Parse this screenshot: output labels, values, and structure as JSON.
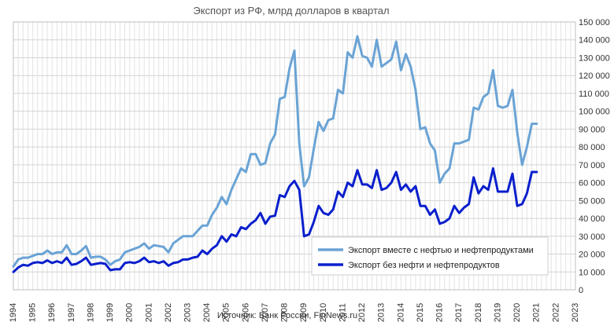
{
  "chart_data": {
    "type": "line",
    "title": "Экспорт из РФ, млрд долларов в квартал",
    "source": "Источник: Банк России, FinNews.ru",
    "xlabel": "",
    "ylabel": "",
    "xlim": [
      1994,
      2023
    ],
    "ylim": [
      0,
      150000
    ],
    "y_ticks": [
      0,
      10000,
      20000,
      30000,
      40000,
      50000,
      60000,
      70000,
      80000,
      90000,
      100000,
      110000,
      120000,
      130000,
      140000,
      150000
    ],
    "y_tick_labels": [
      "0",
      "10 000",
      "20 000",
      "30 000",
      "40 000",
      "50 000",
      "60 000",
      "70 000",
      "80 000",
      "90 000",
      "100 000",
      "110 000",
      "120 000",
      "130 000",
      "140 000",
      "150 000"
    ],
    "x_ticks": [
      "1994",
      "1995",
      "1996",
      "1997",
      "1998",
      "1999",
      "2000",
      "2001",
      "2002",
      "2003",
      "2004",
      "2005",
      "2006",
      "2007",
      "2008",
      "2009",
      "2010",
      "2011",
      "2012",
      "2013",
      "2014",
      "2015",
      "2016",
      "2017",
      "2018",
      "2019",
      "2020",
      "2021",
      "2022",
      "2023"
    ],
    "grid": true,
    "legend_position": "bottom-right",
    "series": [
      {
        "name": "Экспорт вместе с нефтью и нефтепродуктами",
        "color": "#6aa3d5",
        "x": [
          1994.0,
          1994.25,
          1994.5,
          1994.75,
          1995.0,
          1995.25,
          1995.5,
          1995.75,
          1996.0,
          1996.25,
          1996.5,
          1996.75,
          1997.0,
          1997.25,
          1997.5,
          1997.75,
          1998.0,
          1998.25,
          1998.5,
          1998.75,
          1999.0,
          1999.25,
          1999.5,
          1999.75,
          2000.0,
          2000.25,
          2000.5,
          2000.75,
          2001.0,
          2001.25,
          2001.5,
          2001.75,
          2002.0,
          2002.25,
          2002.5,
          2002.75,
          2003.0,
          2003.25,
          2003.5,
          2003.75,
          2004.0,
          2004.25,
          2004.5,
          2004.75,
          2005.0,
          2005.25,
          2005.5,
          2005.75,
          2006.0,
          2006.25,
          2006.5,
          2006.75,
          2007.0,
          2007.25,
          2007.5,
          2007.75,
          2008.0,
          2008.25,
          2008.5,
          2008.75,
          2009.0,
          2009.25,
          2009.5,
          2009.75,
          2010.0,
          2010.25,
          2010.5,
          2010.75,
          2011.0,
          2011.25,
          2011.5,
          2011.75,
          2012.0,
          2012.25,
          2012.5,
          2012.75,
          2013.0,
          2013.25,
          2013.5,
          2013.75,
          2014.0,
          2014.25,
          2014.5,
          2014.75,
          2015.0,
          2015.25,
          2015.5,
          2015.75,
          2016.0,
          2016.25,
          2016.5,
          2016.75,
          2017.0,
          2017.25,
          2017.5,
          2017.75,
          2018.0,
          2018.25,
          2018.5,
          2018.75,
          2019.0,
          2019.25,
          2019.5,
          2019.75,
          2020.0,
          2020.25,
          2020.5,
          2020.75,
          2021.0
        ],
        "values": [
          13000,
          17000,
          18000,
          18000,
          19000,
          20000,
          20000,
          22000,
          20000,
          21000,
          21000,
          25000,
          20000,
          20000,
          22000,
          24500,
          18000,
          18500,
          18500,
          17000,
          14000,
          16000,
          17000,
          21000,
          22000,
          23000,
          24000,
          26000,
          23000,
          25000,
          24500,
          24000,
          21000,
          26000,
          28000,
          30000,
          30000,
          30000,
          33000,
          36000,
          36000,
          42000,
          46000,
          52000,
          48000,
          56000,
          62000,
          68000,
          66000,
          76000,
          76000,
          70000,
          71000,
          82000,
          87000,
          107000,
          108000,
          124000,
          134000,
          82000,
          58000,
          63000,
          79000,
          94000,
          89000,
          95000,
          96000,
          112000,
          110000,
          133000,
          130000,
          142000,
          131000,
          130000,
          125000,
          140000,
          125000,
          127000,
          129000,
          139000,
          123000,
          132000,
          125000,
          112000,
          90000,
          91000,
          82000,
          78000,
          60000,
          65000,
          68000,
          82000,
          82000,
          83000,
          84000,
          102000,
          101000,
          108000,
          110000,
          123000,
          103000,
          102000,
          103000,
          112000,
          88000,
          70000,
          80000,
          93000,
          93000
        ]
      },
      {
        "name": "Экспорт без нефти и нефтепродуктов",
        "color": "#0a1fcc",
        "x": [
          1994.0,
          1994.25,
          1994.5,
          1994.75,
          1995.0,
          1995.25,
          1995.5,
          1995.75,
          1996.0,
          1996.25,
          1996.5,
          1996.75,
          1997.0,
          1997.25,
          1997.5,
          1997.75,
          1998.0,
          1998.25,
          1998.5,
          1998.75,
          1999.0,
          1999.25,
          1999.5,
          1999.75,
          2000.0,
          2000.25,
          2000.5,
          2000.75,
          2001.0,
          2001.25,
          2001.5,
          2001.75,
          2002.0,
          2002.25,
          2002.5,
          2002.75,
          2003.0,
          2003.25,
          2003.5,
          2003.75,
          2004.0,
          2004.25,
          2004.5,
          2004.75,
          2005.0,
          2005.25,
          2005.5,
          2005.75,
          2006.0,
          2006.25,
          2006.5,
          2006.75,
          2007.0,
          2007.25,
          2007.5,
          2007.75,
          2008.0,
          2008.25,
          2008.5,
          2008.75,
          2009.0,
          2009.25,
          2009.5,
          2009.75,
          2010.0,
          2010.25,
          2010.5,
          2010.75,
          2011.0,
          2011.25,
          2011.5,
          2011.75,
          2012.0,
          2012.25,
          2012.5,
          2012.75,
          2013.0,
          2013.25,
          2013.5,
          2013.75,
          2014.0,
          2014.25,
          2014.5,
          2014.75,
          2015.0,
          2015.25,
          2015.5,
          2015.75,
          2016.0,
          2016.25,
          2016.5,
          2016.75,
          2017.0,
          2017.25,
          2017.5,
          2017.75,
          2018.0,
          2018.25,
          2018.5,
          2018.75,
          2019.0,
          2019.25,
          2019.5,
          2019.75,
          2020.0,
          2020.25,
          2020.5,
          2020.75,
          2021.0
        ],
        "values": [
          10000,
          12500,
          14000,
          13500,
          15000,
          15500,
          15000,
          16500,
          15000,
          16000,
          15000,
          18000,
          14000,
          14500,
          16000,
          18000,
          14000,
          14500,
          15000,
          14500,
          11000,
          11500,
          11500,
          15000,
          15500,
          15000,
          16000,
          18000,
          15500,
          16000,
          15000,
          16000,
          13500,
          15000,
          15500,
          17000,
          17000,
          18000,
          18500,
          22000,
          20000,
          23000,
          25000,
          30000,
          27000,
          31000,
          30000,
          35000,
          34000,
          37000,
          39000,
          43000,
          37000,
          41000,
          41500,
          53000,
          52000,
          58000,
          61000,
          56000,
          30000,
          31000,
          38000,
          47000,
          43000,
          42000,
          45000,
          55000,
          52000,
          60000,
          58000,
          67000,
          59000,
          59000,
          57000,
          67000,
          56000,
          57000,
          60000,
          66000,
          56000,
          59000,
          55000,
          58000,
          47000,
          47000,
          42000,
          45000,
          37000,
          38000,
          40000,
          47000,
          43000,
          46000,
          48000,
          63000,
          54000,
          58000,
          56000,
          68000,
          55000,
          55000,
          55000,
          65000,
          47000,
          48000,
          54000,
          66000,
          66000
        ]
      }
    ]
  }
}
